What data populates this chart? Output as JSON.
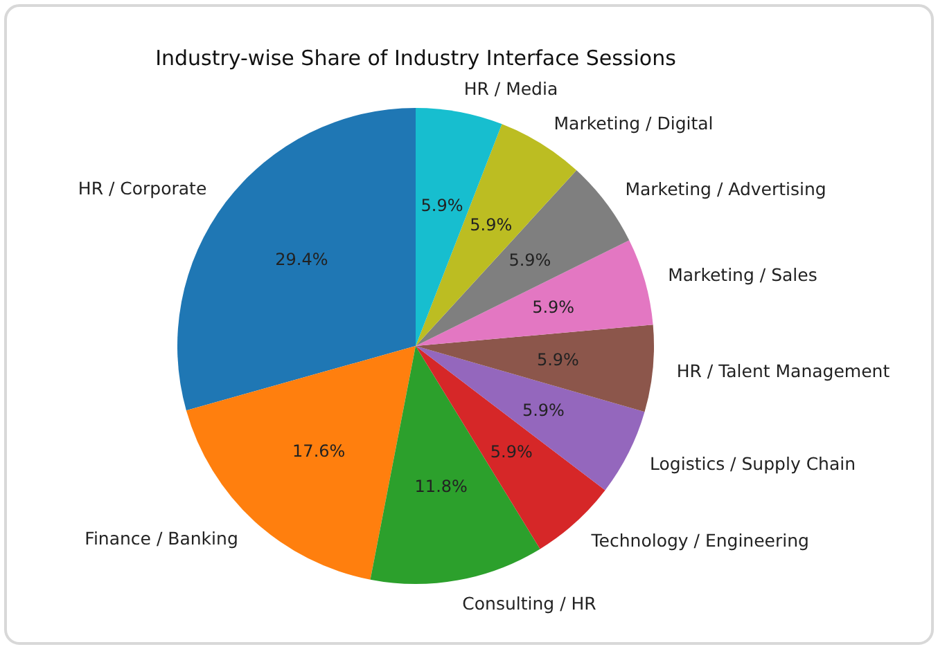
{
  "chart_data": {
    "type": "pie",
    "title": "Industry-wise Share of Industry Interface Sessions",
    "categories": [
      "HR / Corporate",
      "Finance / Banking",
      "Consulting / HR",
      "Technology / Engineering",
      "Logistics / Supply Chain",
      "HR / Talent Management",
      "Marketing / Sales",
      "Marketing / Advertising",
      "Marketing / Digital",
      "HR / Media"
    ],
    "values": [
      29.4,
      17.6,
      11.8,
      5.9,
      5.9,
      5.9,
      5.9,
      5.9,
      5.9,
      5.9
    ],
    "colors": [
      "#1f77b4",
      "#ff7f0e",
      "#2ca02c",
      "#d62728",
      "#9467bd",
      "#8c564b",
      "#e377c2",
      "#7f7f7f",
      "#bcbd22",
      "#17becf"
    ],
    "value_labels": [
      "29.4%",
      "17.6%",
      "11.8%",
      "5.9%",
      "5.9%",
      "5.9%",
      "5.9%",
      "5.9%",
      "5.9%",
      "5.9%"
    ]
  }
}
